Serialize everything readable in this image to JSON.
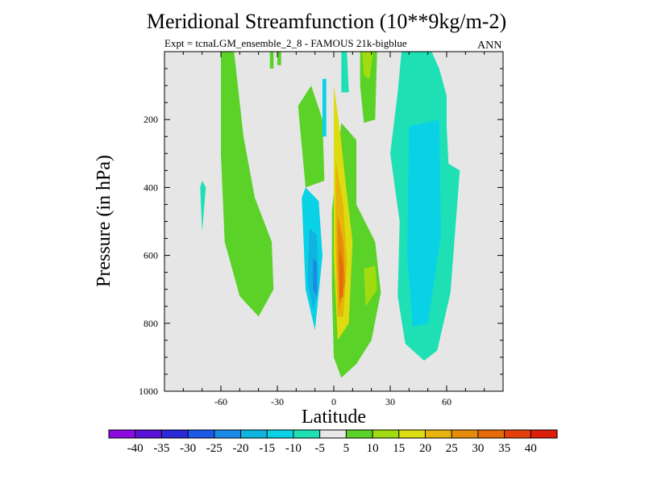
{
  "chart_data": {
    "type": "contour",
    "title": "Meridional Streamfunction (10**9kg/m-2)",
    "subtitle": "Expt = tcnaLGM_ensemble_2_8 - FAMOUS 21k-bigblue",
    "season": "ANN",
    "xlabel": "Latitude",
    "ylabel": "Pressure (in hPa)",
    "xlim": [
      -90,
      90
    ],
    "ylim": [
      1000,
      0
    ],
    "xticks": [
      -60,
      -30,
      0,
      30,
      60
    ],
    "yticks": [
      200,
      400,
      600,
      800,
      1000
    ],
    "colorbar": {
      "levels": [
        -40,
        -35,
        -30,
        -25,
        -20,
        -15,
        -10,
        -5,
        5,
        10,
        15,
        20,
        25,
        30,
        35,
        40
      ],
      "colors": [
        "#8a0ae0",
        "#5a12d8",
        "#2a2ad8",
        "#1a5ae6",
        "#1a8ae8",
        "#10b4e0",
        "#0ad2e6",
        "#1ee0b4",
        "#e8e8e8",
        "#5ad228",
        "#a0dc10",
        "#dcdc10",
        "#e6b40a",
        "#e68c0a",
        "#e66a0a",
        "#e6400a",
        "#dc1e0a"
      ]
    },
    "contours": [
      {
        "level_index": 9,
        "points": [
          [
            -60,
            0
          ],
          [
            -53,
            0
          ],
          [
            -48,
            250
          ],
          [
            -42,
            430
          ],
          [
            -33,
            560
          ],
          [
            -32,
            700
          ],
          [
            -40,
            780
          ],
          [
            -50,
            720
          ],
          [
            -58,
            560
          ],
          [
            -60,
            300
          ]
        ]
      },
      {
        "level_index": 9,
        "points": [
          [
            -19,
            160
          ],
          [
            -15,
            400
          ],
          [
            -5,
            380
          ],
          [
            -6,
            200
          ],
          [
            -12,
            100
          ]
        ]
      },
      {
        "level_index": 9,
        "points": [
          [
            -34,
            0
          ],
          [
            -32,
            0
          ],
          [
            -32,
            50
          ],
          [
            -34,
            50
          ]
        ]
      },
      {
        "level_index": 9,
        "points": [
          [
            -30,
            0
          ],
          [
            -28,
            0
          ],
          [
            -28,
            40
          ],
          [
            -30,
            40
          ]
        ]
      },
      {
        "level_index": 9,
        "points": [
          [
            -1,
            470
          ],
          [
            4,
            210
          ],
          [
            12,
            260
          ],
          [
            12,
            450
          ],
          [
            22,
            560
          ],
          [
            25,
            710
          ],
          [
            20,
            850
          ],
          [
            12,
            920
          ],
          [
            4,
            960
          ],
          [
            0,
            900
          ],
          [
            -1,
            700
          ]
        ]
      },
      {
        "level_index": 9,
        "points": [
          [
            14,
            0
          ],
          [
            23,
            0
          ],
          [
            22,
            200
          ],
          [
            16,
            210
          ],
          [
            14,
            100
          ]
        ]
      },
      {
        "level_index": 10,
        "points": [
          [
            15,
            0
          ],
          [
            21,
            0
          ],
          [
            19,
            80
          ],
          [
            16,
            70
          ]
        ]
      },
      {
        "level_index": 10,
        "points": [
          [
            16,
            640
          ],
          [
            22,
            630
          ],
          [
            23,
            700
          ],
          [
            17,
            750
          ]
        ]
      },
      {
        "level_index": 7,
        "points": [
          [
            4,
            0
          ],
          [
            7,
            0
          ],
          [
            8,
            120
          ],
          [
            4,
            120
          ]
        ]
      },
      {
        "level_index": 7,
        "points": [
          [
            -70,
            380
          ],
          [
            -68,
            400
          ],
          [
            -70,
            530
          ],
          [
            -71,
            400
          ]
        ]
      },
      {
        "level_index": 7,
        "points": [
          [
            36,
            0
          ],
          [
            52,
            0
          ],
          [
            56,
            50
          ],
          [
            60,
            130
          ],
          [
            60,
            220
          ],
          [
            61,
            330
          ],
          [
            67,
            350
          ],
          [
            62,
            710
          ],
          [
            55,
            880
          ],
          [
            48,
            910
          ],
          [
            38,
            860
          ],
          [
            34,
            720
          ],
          [
            35,
            500
          ],
          [
            30,
            300
          ],
          [
            34,
            120
          ]
        ]
      },
      {
        "level_index": 6,
        "points": [
          [
            -17,
            430
          ],
          [
            -15,
            400
          ],
          [
            -8,
            440
          ],
          [
            -6,
            600
          ],
          [
            -10,
            820
          ],
          [
            -15,
            700
          ]
        ]
      },
      {
        "level_index": 6,
        "points": [
          [
            -6,
            80
          ],
          [
            -4,
            80
          ],
          [
            -4,
            250
          ],
          [
            -6,
            250
          ]
        ]
      },
      {
        "level_index": 6,
        "points": [
          [
            40,
            220
          ],
          [
            56,
            200
          ],
          [
            57,
            540
          ],
          [
            50,
            800
          ],
          [
            42,
            810
          ],
          [
            39,
            600
          ]
        ]
      },
      {
        "level_index": 5,
        "points": [
          [
            -13,
            520
          ],
          [
            -9,
            540
          ],
          [
            -8,
            700
          ],
          [
            -11,
            760
          ],
          [
            -14,
            680
          ]
        ]
      },
      {
        "level_index": 4,
        "points": [
          [
            -11,
            610
          ],
          [
            -9,
            620
          ],
          [
            -9,
            720
          ],
          [
            -11,
            700
          ]
        ]
      },
      {
        "level_index": 11,
        "points": [
          [
            0,
            100
          ],
          [
            3,
            220
          ],
          [
            7,
            420
          ],
          [
            10,
            560
          ],
          [
            8,
            800
          ],
          [
            2,
            850
          ],
          [
            0,
            600
          ]
        ]
      },
      {
        "level_index": 12,
        "points": [
          [
            1,
            320
          ],
          [
            5,
            450
          ],
          [
            7,
            620
          ],
          [
            5,
            780
          ],
          [
            2,
            780
          ],
          [
            1,
            560
          ]
        ]
      },
      {
        "level_index": 13,
        "points": [
          [
            2,
            480
          ],
          [
            5,
            560
          ],
          [
            6,
            680
          ],
          [
            3,
            760
          ],
          [
            2,
            620
          ]
        ]
      },
      {
        "level_index": 14,
        "points": [
          [
            3,
            580
          ],
          [
            5,
            630
          ],
          [
            5,
            720
          ],
          [
            3,
            730
          ]
        ]
      }
    ]
  }
}
